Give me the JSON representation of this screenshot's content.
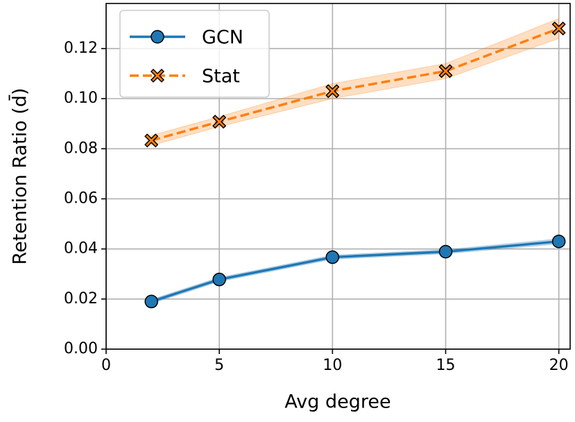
{
  "chart_data": {
    "type": "line",
    "x_label": "Avg degree",
    "y_label": "Retention Ratio (d̄)",
    "x": [
      2,
      5,
      10,
      15,
      20
    ],
    "series": [
      {
        "name": "GCN",
        "color": "#1f77b4",
        "marker": "circle",
        "dash": false,
        "values": [
          0.019,
          0.0278,
          0.0367,
          0.0389,
          0.043
        ],
        "errors": [
          0.0008,
          0.0008,
          0.0008,
          0.0008,
          0.001
        ]
      },
      {
        "name": "Stat",
        "color": "#ff7f0e",
        "marker": "x",
        "dash": true,
        "values": [
          0.0833,
          0.0908,
          0.103,
          0.111,
          0.128
        ],
        "errors": [
          0.002,
          0.002,
          0.003,
          0.003,
          0.004
        ]
      }
    ],
    "xlim": [
      0,
      20.5
    ],
    "ylim": [
      0,
      0.138
    ],
    "xticks": [
      0,
      5,
      10,
      15,
      20
    ],
    "yticks": [
      {
        "value": 0,
        "label": "0.00"
      },
      {
        "value": 0.02,
        "label": "0.02"
      },
      {
        "value": 0.04,
        "label": "0.04"
      },
      {
        "value": 0.06,
        "label": "0.06"
      },
      {
        "value": 0.08,
        "label": "0.08"
      },
      {
        "value": 0.1,
        "label": "0.10"
      },
      {
        "value": 0.12,
        "label": "0.12"
      }
    ],
    "grid": true,
    "legend": "upper-left"
  }
}
